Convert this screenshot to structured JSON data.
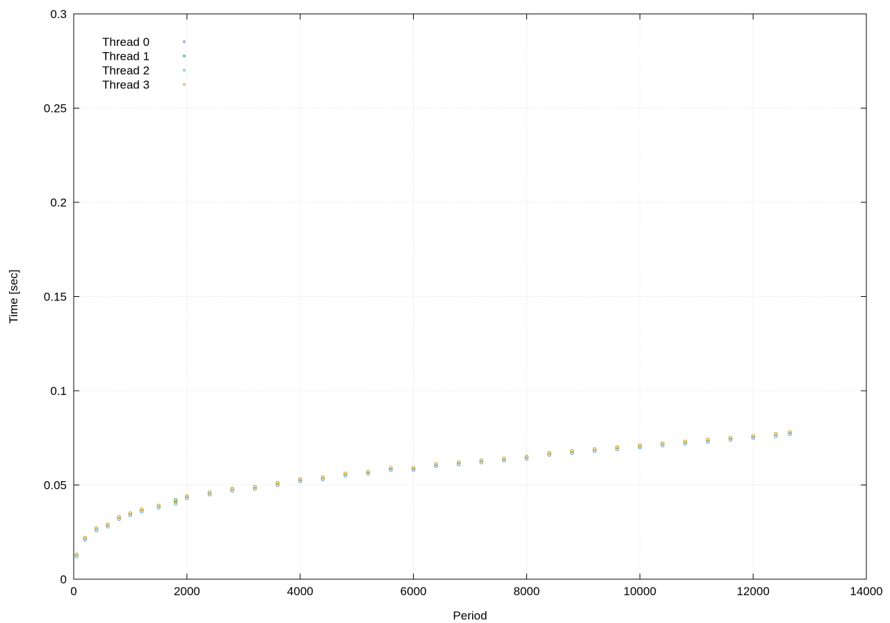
{
  "chart_data": {
    "type": "scatter",
    "title": "",
    "xlabel": "Period",
    "ylabel": "Time [sec]",
    "xlim": [
      0,
      14000
    ],
    "ylim": [
      0,
      0.3
    ],
    "grid": true,
    "legend_position": "top-left",
    "x_ticks": [
      "0",
      "2000",
      "4000",
      "6000",
      "8000",
      "10000",
      "12000",
      "14000"
    ],
    "y_ticks": [
      "0",
      "0.05",
      "0.1",
      "0.15",
      "0.2",
      "0.25",
      "0.3"
    ],
    "series": [
      {
        "name": "Thread 0",
        "color": "#9b6ed0",
        "x": [
          50,
          200,
          400,
          600,
          800,
          1000,
          1200,
          1500,
          1800,
          2000,
          2400,
          2800,
          3200,
          3600,
          4000,
          4400,
          4800,
          5200,
          5600,
          6000,
          6400,
          6800,
          7200,
          7600,
          8000,
          8400,
          8800,
          9200,
          9600,
          10000,
          10400,
          10800,
          11200,
          11600,
          12000,
          12400,
          12650
        ],
        "y": [
          0.013,
          0.021,
          0.026,
          0.028,
          0.032,
          0.034,
          0.036,
          0.038,
          0.041,
          0.043,
          0.045,
          0.047,
          0.048,
          0.05,
          0.052,
          0.053,
          0.055,
          0.056,
          0.058,
          0.058,
          0.06,
          0.061,
          0.062,
          0.063,
          0.064,
          0.066,
          0.067,
          0.068,
          0.069,
          0.07,
          0.071,
          0.072,
          0.073,
          0.074,
          0.075,
          0.076,
          0.077
        ]
      },
      {
        "name": "Thread 1",
        "color": "#2a9d5a",
        "x": [
          50,
          200,
          400,
          600,
          800,
          1000,
          1200,
          1500,
          1800,
          2000,
          2400,
          2800,
          3200,
          3600,
          4000,
          4400,
          4800,
          5200,
          5600,
          6000,
          6400,
          6800,
          7200,
          7600,
          8000,
          8400,
          8800,
          9200,
          9600,
          10000,
          10400,
          10800,
          11200,
          11600,
          12000,
          12400,
          12650
        ],
        "y": [
          0.013,
          0.022,
          0.027,
          0.029,
          0.033,
          0.035,
          0.037,
          0.039,
          0.042,
          0.044,
          0.046,
          0.048,
          0.049,
          0.051,
          0.053,
          0.054,
          0.056,
          0.057,
          0.059,
          0.059,
          0.061,
          0.062,
          0.063,
          0.064,
          0.065,
          0.067,
          0.068,
          0.069,
          0.07,
          0.071,
          0.072,
          0.073,
          0.074,
          0.075,
          0.076,
          0.077,
          0.078
        ]
      },
      {
        "name": "Thread 2",
        "color": "#56b4e9",
        "x": [
          50,
          200,
          400,
          600,
          800,
          1000,
          1200,
          1500,
          1800,
          2000,
          2400,
          2800,
          3200,
          3600,
          4000,
          4400,
          4800,
          5200,
          5600,
          6000,
          6400,
          6800,
          7200,
          7600,
          8000,
          8400,
          8800,
          9200,
          9600,
          10000,
          10400,
          10800,
          11200,
          11600,
          12000,
          12400,
          12650
        ],
        "y": [
          0.012,
          0.021,
          0.026,
          0.028,
          0.032,
          0.034,
          0.036,
          0.038,
          0.04,
          0.043,
          0.045,
          0.047,
          0.048,
          0.05,
          0.052,
          0.053,
          0.055,
          0.056,
          0.058,
          0.058,
          0.06,
          0.061,
          0.062,
          0.063,
          0.064,
          0.066,
          0.067,
          0.068,
          0.069,
          0.07,
          0.071,
          0.072,
          0.073,
          0.074,
          0.075,
          0.076,
          0.077
        ]
      },
      {
        "name": "Thread 3",
        "color": "#e69f00",
        "x": [
          50,
          200,
          400,
          600,
          800,
          1000,
          1200,
          1500,
          1800,
          2000,
          2400,
          2800,
          3200,
          3600,
          4000,
          4400,
          4800,
          5200,
          5600,
          6000,
          6400,
          6800,
          7200,
          7600,
          8000,
          8400,
          8800,
          9200,
          9600,
          10000,
          10400,
          10800,
          11200,
          11600,
          12000,
          12400,
          12650
        ],
        "y": [
          0.013,
          0.022,
          0.027,
          0.029,
          0.033,
          0.035,
          0.037,
          0.039,
          0.041,
          0.044,
          0.046,
          0.048,
          0.049,
          0.051,
          0.053,
          0.054,
          0.056,
          0.057,
          0.059,
          0.059,
          0.061,
          0.062,
          0.063,
          0.064,
          0.065,
          0.067,
          0.068,
          0.069,
          0.07,
          0.071,
          0.072,
          0.073,
          0.074,
          0.075,
          0.076,
          0.077,
          0.078
        ]
      }
    ]
  }
}
